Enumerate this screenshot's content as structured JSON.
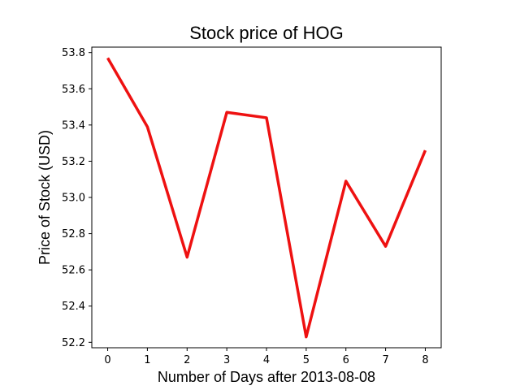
{
  "chart_data": {
    "type": "line",
    "title": "Stock price of HOG",
    "xlabel": "Number of Days after 2013-08-08",
    "ylabel": "Price of Stock (USD)",
    "x": [
      0,
      1,
      2,
      3,
      4,
      5,
      6,
      7,
      8
    ],
    "series": [
      {
        "values": [
          53.77,
          53.39,
          52.67,
          53.47,
          53.44,
          52.23,
          53.09,
          52.73,
          53.26
        ],
        "color": "#ee1111"
      }
    ],
    "xlim": [
      -0.4,
      8.4
    ],
    "ylim": [
      52.17,
      53.83
    ],
    "x_ticks": [
      "0",
      "1",
      "2",
      "3",
      "4",
      "5",
      "6",
      "7",
      "8"
    ],
    "y_ticks": [
      "52.2",
      "52.4",
      "52.6",
      "52.8",
      "53.0",
      "53.2",
      "53.4",
      "53.6",
      "53.8"
    ],
    "grid": false,
    "legend": "none"
  }
}
